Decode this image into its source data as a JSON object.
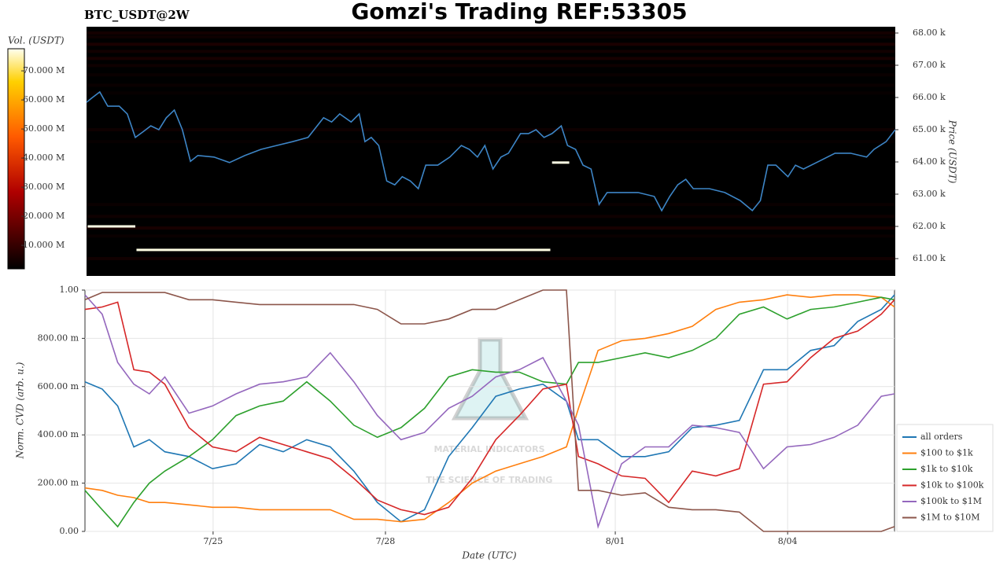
{
  "chart_data": [
    {
      "type": "heatmap",
      "title": "Gomzi's Trading REF:53305",
      "subtitle": "BTC_USDT@2W",
      "ylabel": "Price (USDT)",
      "colorbar_label": "Vol. (USDT)",
      "xlim": [
        22.77,
        36.86
      ],
      "ylim": [
        60463,
        68195
      ],
      "yticks": [
        {
          "value": 61000,
          "label": "61.00 k"
        },
        {
          "value": 62000,
          "label": "62.00 k"
        },
        {
          "value": 63000,
          "label": "63.00 k"
        },
        {
          "value": 64000,
          "label": "64.00 k"
        },
        {
          "value": 65000,
          "label": "65.00 k"
        },
        {
          "value": 66000,
          "label": "66.00 k"
        },
        {
          "value": 67000,
          "label": "67.00 k"
        },
        {
          "value": 68000,
          "label": "68.00 k"
        }
      ],
      "clim": [
        1900000,
        77600000
      ],
      "cticks": [
        {
          "value": 10000000,
          "label": "10.000 M"
        },
        {
          "value": 20000000,
          "label": "20.000 M"
        },
        {
          "value": 30000000,
          "label": "30.000 M"
        },
        {
          "value": 40000000,
          "label": "40.000 M"
        },
        {
          "value": 50000000,
          "label": "50.000 M"
        },
        {
          "value": 60000000,
          "label": "60.000 M"
        },
        {
          "value": 70000000,
          "label": "70.000 M"
        }
      ],
      "bands": {
        "prices": [
          68000,
          67880,
          67650,
          67430,
          67210,
          66990,
          66700,
          66380,
          66140,
          65000,
          64630,
          62680,
          62310,
          61950,
          61700,
          61000
        ],
        "volumes": [
          8000000,
          6000000,
          10000000,
          7000000,
          9000000,
          6000000,
          5000000,
          5000000,
          4000000,
          6000000,
          4000000,
          5000000,
          6000000,
          9000000,
          5000000,
          7000000
        ]
      },
      "walls": [
        {
          "price": 62000,
          "start": 22.79,
          "end": 23.62,
          "volume": 80000000
        },
        {
          "price": 61270,
          "start": 23.64,
          "end": 30.85,
          "volume": 80000000
        },
        {
          "price": 63980,
          "start": 30.88,
          "end": 31.18,
          "volume": 80000000
        }
      ],
      "price": {
        "color": "#3d85c6",
        "x": [
          22.77,
          22.86,
          23.0,
          23.14,
          23.34,
          23.48,
          23.62,
          23.75,
          23.89,
          24.03,
          24.16,
          24.3,
          24.44,
          24.58,
          24.71,
          24.99,
          25.26,
          25.53,
          25.81,
          26.08,
          26.36,
          26.63,
          26.9,
          27.04,
          27.18,
          27.38,
          27.52,
          27.62,
          27.73,
          27.86,
          28.0,
          28.14,
          28.27,
          28.41,
          28.55,
          28.68,
          28.89,
          29.1,
          29.3,
          29.44,
          29.58,
          29.71,
          29.85,
          29.99,
          30.12,
          30.33,
          30.47,
          30.6,
          30.74,
          30.88,
          31.04,
          31.15,
          31.29,
          31.42,
          31.56,
          31.7,
          31.84,
          32.11,
          32.38,
          32.66,
          32.79,
          32.93,
          33.07,
          33.21,
          33.34,
          33.62,
          33.89,
          34.16,
          34.37,
          34.51,
          34.64,
          34.78,
          34.99,
          35.12,
          35.26,
          35.53,
          35.81,
          36.08,
          36.36,
          36.49,
          36.7,
          36.86
        ],
        "values": [
          65850,
          65980,
          66170,
          65730,
          65730,
          65490,
          64760,
          64930,
          65120,
          65000,
          65370,
          65610,
          65000,
          64020,
          64200,
          64150,
          63980,
          64200,
          64390,
          64510,
          64630,
          64760,
          65370,
          65240,
          65490,
          65240,
          65490,
          64630,
          64760,
          64510,
          63410,
          63290,
          63540,
          63410,
          63170,
          63900,
          63900,
          64150,
          64510,
          64390,
          64150,
          64510,
          63780,
          64150,
          64270,
          64880,
          64880,
          65000,
          64760,
          64880,
          65120,
          64510,
          64390,
          63900,
          63780,
          62680,
          63050,
          63050,
          63050,
          62930,
          62490,
          62930,
          63290,
          63460,
          63170,
          63170,
          63050,
          62800,
          62490,
          62800,
          63900,
          63900,
          63540,
          63900,
          63780,
          64020,
          64270,
          64270,
          64150,
          64390,
          64630,
          65000
        ]
      }
    },
    {
      "type": "line",
      "xlabel": "Date (UTC)",
      "ylabel": "Norm. CVD (arb. u.)",
      "grid": true,
      "legend": "right",
      "watermark": [
        "MATERIAL INDICATORS",
        "THE SCIENCE OF TRADING"
      ],
      "xlim": [
        22.77,
        36.86
      ],
      "ylim": [
        0,
        1
      ],
      "xticks": [
        {
          "value": 25,
          "label": "7/25"
        },
        {
          "value": 28,
          "label": "7/28"
        },
        {
          "value": 32,
          "label": "8/01"
        },
        {
          "value": 35,
          "label": "8/04"
        }
      ],
      "yticks": [
        {
          "value": 0,
          "label": "0.00"
        },
        {
          "value": 0.2,
          "label": "200.00 m"
        },
        {
          "value": 0.4,
          "label": "400.00 m"
        },
        {
          "value": 0.6,
          "label": "600.00 m"
        },
        {
          "value": 0.8,
          "label": "800.00 m"
        },
        {
          "value": 1,
          "label": "1.00"
        }
      ],
      "x": [
        22.77,
        23.07,
        23.34,
        23.62,
        23.89,
        24.16,
        24.58,
        24.99,
        25.4,
        25.81,
        26.22,
        26.63,
        27.04,
        27.45,
        27.86,
        28.27,
        28.68,
        29.1,
        29.51,
        29.92,
        30.33,
        30.74,
        31.15,
        31.36,
        31.7,
        32.11,
        32.52,
        32.93,
        33.34,
        33.75,
        34.16,
        34.58,
        34.99,
        35.4,
        35.81,
        36.22,
        36.63,
        36.86
      ],
      "series": [
        {
          "name": "all orders",
          "color": "#1f77b4",
          "values": [
            0.62,
            0.59,
            0.52,
            0.35,
            0.38,
            0.33,
            0.31,
            0.26,
            0.28,
            0.36,
            0.33,
            0.38,
            0.35,
            0.25,
            0.12,
            0.04,
            0.09,
            0.31,
            0.43,
            0.56,
            0.59,
            0.61,
            0.54,
            0.38,
            0.38,
            0.31,
            0.31,
            0.33,
            0.43,
            0.44,
            0.46,
            0.67,
            0.67,
            0.75,
            0.77,
            0.87,
            0.92,
            0.98
          ]
        },
        {
          "name": "$100 to $1k",
          "color": "#ff7f0e",
          "values": [
            0.18,
            0.17,
            0.15,
            0.14,
            0.12,
            0.12,
            0.11,
            0.1,
            0.1,
            0.09,
            0.09,
            0.09,
            0.09,
            0.05,
            0.05,
            0.04,
            0.05,
            0.12,
            0.2,
            0.25,
            0.28,
            0.31,
            0.35,
            0.51,
            0.75,
            0.79,
            0.8,
            0.82,
            0.85,
            0.92,
            0.95,
            0.96,
            0.98,
            0.97,
            0.98,
            0.98,
            0.97,
            0.93
          ]
        },
        {
          "name": "$1k to $10k",
          "color": "#2ca02c",
          "values": [
            0.17,
            0.09,
            0.02,
            0.12,
            0.2,
            0.25,
            0.31,
            0.38,
            0.48,
            0.52,
            0.54,
            0.62,
            0.54,
            0.44,
            0.39,
            0.43,
            0.51,
            0.64,
            0.67,
            0.66,
            0.66,
            0.62,
            0.61,
            0.7,
            0.7,
            0.72,
            0.74,
            0.72,
            0.75,
            0.8,
            0.9,
            0.93,
            0.88,
            0.92,
            0.93,
            0.95,
            0.97,
            0.96
          ]
        },
        {
          "name": "$10k to $100k",
          "color": "#d62728",
          "values": [
            0.92,
            0.93,
            0.95,
            0.67,
            0.66,
            0.61,
            0.43,
            0.35,
            0.33,
            0.39,
            0.36,
            0.33,
            0.3,
            0.22,
            0.13,
            0.09,
            0.07,
            0.1,
            0.22,
            0.38,
            0.48,
            0.59,
            0.61,
            0.31,
            0.28,
            0.23,
            0.22,
            0.12,
            0.25,
            0.23,
            0.26,
            0.61,
            0.62,
            0.72,
            0.8,
            0.83,
            0.9,
            0.96
          ]
        },
        {
          "name": "$100k to $1M",
          "color": "#9467bd",
          "values": [
            0.98,
            0.9,
            0.7,
            0.61,
            0.57,
            0.64,
            0.49,
            0.52,
            0.57,
            0.61,
            0.62,
            0.64,
            0.74,
            0.62,
            0.48,
            0.38,
            0.41,
            0.51,
            0.56,
            0.64,
            0.67,
            0.72,
            0.54,
            0.44,
            0.02,
            0.28,
            0.35,
            0.35,
            0.44,
            0.43,
            0.41,
            0.26,
            0.35,
            0.36,
            0.39,
            0.44,
            0.56,
            0.57
          ]
        },
        {
          "name": "$1M to $10M",
          "color": "#8c564b",
          "values": [
            0.96,
            0.99,
            0.99,
            0.99,
            0.99,
            0.99,
            0.96,
            0.96,
            0.95,
            0.94,
            0.94,
            0.94,
            0.94,
            0.94,
            0.92,
            0.86,
            0.86,
            0.88,
            0.92,
            0.92,
            0.96,
            1.0,
            1.0,
            0.17,
            0.17,
            0.15,
            0.16,
            0.1,
            0.09,
            0.09,
            0.08,
            0,
            0,
            0,
            0,
            0,
            0,
            0.02
          ]
        }
      ]
    }
  ]
}
